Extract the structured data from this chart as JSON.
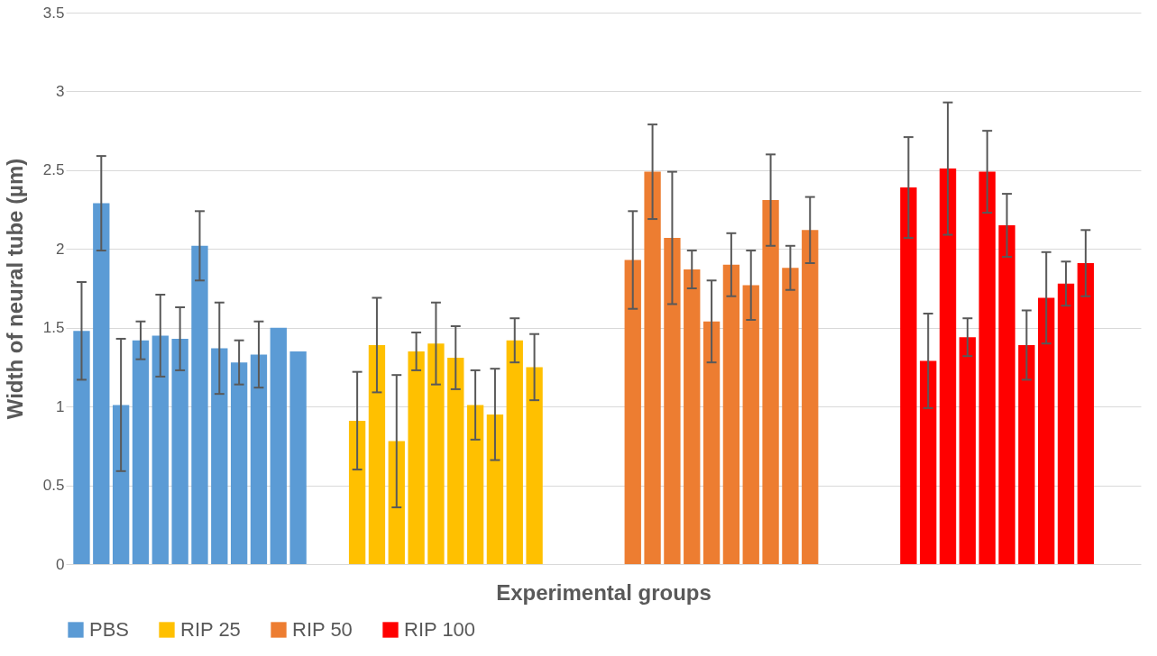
{
  "chart_data": {
    "type": "bar",
    "xlabel": "Experimental groups",
    "ylabel": "Width of neural tube (µm)",
    "categories": [
      null,
      null,
      null,
      null,
      null,
      null,
      null,
      null,
      null,
      null,
      null,
      null,
      null,
      null,
      null,
      null,
      null,
      null,
      null,
      null,
      null,
      null,
      null,
      null,
      null,
      null,
      null,
      null,
      null,
      null,
      null,
      null,
      null,
      null,
      null,
      null,
      null,
      null,
      null,
      null,
      null,
      null,
      null,
      null,
      null,
      null,
      null,
      null,
      null,
      null,
      null,
      null,
      null,
      null
    ],
    "series": [
      {
        "name": "PBS",
        "color": "#5b9bd5",
        "values": [
          1.48,
          2.29,
          1.01,
          1.42,
          1.45,
          1.43,
          2.02,
          1.37,
          1.28,
          1.33,
          1.5,
          1.35,
          null,
          null,
          null,
          null,
          null,
          null,
          null,
          null,
          null,
          null,
          null,
          null,
          null,
          null,
          null,
          null,
          null,
          null,
          null,
          null,
          null,
          null,
          null,
          null,
          null,
          null,
          null,
          null,
          null,
          null,
          null,
          null,
          null,
          null,
          null,
          null,
          null,
          null,
          null,
          null,
          null,
          null
        ],
        "errors": [
          0.31,
          0.3,
          0.42,
          0.12,
          0.26,
          0.2,
          0.22,
          0.29,
          0.14,
          0.21,
          null,
          null,
          null,
          null,
          null,
          null,
          null,
          null,
          null,
          null,
          null,
          null,
          null,
          null,
          null,
          null,
          null,
          null,
          null,
          null,
          null,
          null,
          null,
          null,
          null,
          null,
          null,
          null,
          null,
          null,
          null,
          null,
          null,
          null,
          null,
          null,
          null,
          null,
          null,
          null,
          null,
          null,
          null,
          null
        ]
      },
      {
        "name": "RIP 25",
        "color": "#ffc000",
        "values": [
          null,
          null,
          null,
          null,
          null,
          null,
          null,
          null,
          null,
          null,
          null,
          null,
          null,
          null,
          0.91,
          1.39,
          0.78,
          1.35,
          1.4,
          1.31,
          1.01,
          0.95,
          1.42,
          1.25,
          null,
          null,
          null,
          null,
          null,
          null,
          null,
          null,
          null,
          null,
          null,
          null,
          null,
          null,
          null,
          null,
          null,
          null,
          null,
          null,
          null,
          null,
          null,
          null,
          null,
          null,
          null,
          null,
          null,
          null
        ],
        "errors": [
          null,
          null,
          null,
          null,
          null,
          null,
          null,
          null,
          null,
          null,
          null,
          null,
          null,
          null,
          0.31,
          0.3,
          0.42,
          0.12,
          0.26,
          0.2,
          0.22,
          0.29,
          0.14,
          0.21,
          null,
          null,
          null,
          null,
          null,
          null,
          null,
          null,
          null,
          null,
          null,
          null,
          null,
          null,
          null,
          null,
          null,
          null,
          null,
          null,
          null,
          null,
          null,
          null,
          null,
          null,
          null,
          null,
          null,
          null
        ]
      },
      {
        "name": "RIP 50",
        "color": "#ed7d31",
        "values": [
          null,
          null,
          null,
          null,
          null,
          null,
          null,
          null,
          null,
          null,
          null,
          null,
          null,
          null,
          null,
          null,
          null,
          null,
          null,
          null,
          null,
          null,
          null,
          null,
          null,
          null,
          null,
          null,
          1.93,
          2.49,
          2.07,
          1.87,
          1.54,
          1.9,
          1.77,
          2.31,
          1.88,
          2.12,
          null,
          null,
          null,
          null,
          null,
          null,
          null,
          null,
          null,
          null,
          null,
          null,
          null,
          null,
          null,
          null
        ],
        "errors": [
          null,
          null,
          null,
          null,
          null,
          null,
          null,
          null,
          null,
          null,
          null,
          null,
          null,
          null,
          null,
          null,
          null,
          null,
          null,
          null,
          null,
          null,
          null,
          null,
          null,
          null,
          null,
          null,
          0.31,
          0.3,
          0.42,
          0.12,
          0.26,
          0.2,
          0.22,
          0.29,
          0.14,
          0.21,
          null,
          null,
          null,
          null,
          null,
          null,
          null,
          null,
          null,
          null,
          null,
          null,
          null,
          null,
          null,
          null
        ]
      },
      {
        "name": "RIP 100",
        "color": "#ff0000",
        "values": [
          null,
          null,
          null,
          null,
          null,
          null,
          null,
          null,
          null,
          null,
          null,
          null,
          null,
          null,
          null,
          null,
          null,
          null,
          null,
          null,
          null,
          null,
          null,
          null,
          null,
          null,
          null,
          null,
          null,
          null,
          null,
          null,
          null,
          null,
          null,
          null,
          null,
          null,
          null,
          null,
          null,
          null,
          2.39,
          1.29,
          2.51,
          1.44,
          2.49,
          2.15,
          1.39,
          1.69,
          1.78,
          1.91,
          null,
          null
        ],
        "errors": [
          null,
          null,
          null,
          null,
          null,
          null,
          null,
          null,
          null,
          null,
          null,
          null,
          null,
          null,
          null,
          null,
          null,
          null,
          null,
          null,
          null,
          null,
          null,
          null,
          null,
          null,
          null,
          null,
          null,
          null,
          null,
          null,
          null,
          null,
          null,
          null,
          null,
          null,
          null,
          null,
          null,
          null,
          0.32,
          0.3,
          0.42,
          0.12,
          0.26,
          0.2,
          0.22,
          0.29,
          0.14,
          0.21,
          null,
          null
        ]
      }
    ],
    "ylim": [
      0,
      3.5
    ],
    "yticks": [
      0,
      0.5,
      1,
      1.5,
      2,
      2.5,
      3,
      3.5
    ],
    "grid": "y",
    "legend": "bottom"
  }
}
